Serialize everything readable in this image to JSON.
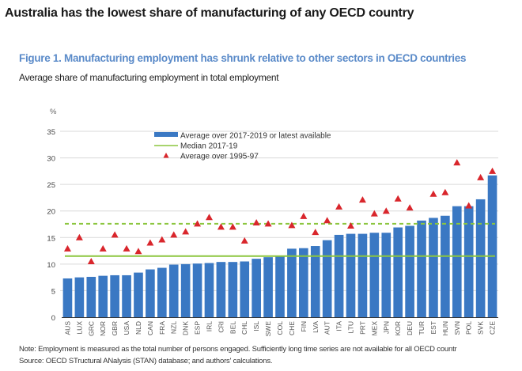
{
  "headline": "Australia has the lowest share of manufacturing of any OECD country",
  "figure_title": "Figure 1. Manufacturing employment has shrunk relative to other sectors in OECD countries",
  "figure_subtitle": "Average share of manufacturing employment in total employment",
  "note": "Note: Employment is measured as the total number of persons engaged. Sufficiently long time series are not available for all OECD countr",
  "source": "Source: OECD STructural ANalysis (STAN) database; and authors' calculations.",
  "chart_data": {
    "type": "bar",
    "title": "Figure 1. Manufacturing employment has shrunk relative to other sectors in OECD countries",
    "subtitle": "Average share of manufacturing employment in total employment",
    "xlabel": "",
    "ylabel": "%",
    "ylim": [
      0,
      35
    ],
    "yticks": [
      0,
      5,
      10,
      15,
      20,
      25,
      30,
      35
    ],
    "grid": true,
    "legend_position": "top-center",
    "categories": [
      "AUS",
      "LUX",
      "GRC",
      "NOR",
      "GBR",
      "USA",
      "NLD",
      "CAN",
      "FRA",
      "NZL",
      "DNK",
      "ESP",
      "IRL",
      "CRI",
      "BEL",
      "CHL",
      "ISL",
      "SWE",
      "COL",
      "CHE",
      "FIN",
      "LVA",
      "AUT",
      "ITA",
      "LTU",
      "PRT",
      "MEX",
      "JPN",
      "KOR",
      "DEU",
      "TUR",
      "EST",
      "HUN",
      "SVN",
      "POL",
      "SVK",
      "CZE"
    ],
    "series": [
      {
        "name": "Average over 2017-2019 or latest available",
        "kind": "bar",
        "color": "#3a78c3",
        "values": [
          7.3,
          7.5,
          7.6,
          7.8,
          7.9,
          7.9,
          8.4,
          9.0,
          9.3,
          9.9,
          10.0,
          10.1,
          10.2,
          10.4,
          10.4,
          10.5,
          11.0,
          11.3,
          11.5,
          12.9,
          13.0,
          13.4,
          14.5,
          15.5,
          15.7,
          15.7,
          15.9,
          15.9,
          16.9,
          17.2,
          18.2,
          18.7,
          19.1,
          20.9,
          20.9,
          22.2,
          26.7
        ]
      },
      {
        "name": "Average over 1995-97",
        "kind": "marker-triangle",
        "color": "#d9262c",
        "values": [
          12.9,
          15.0,
          10.5,
          12.9,
          15.5,
          12.9,
          12.4,
          14.0,
          14.6,
          15.5,
          16.1,
          17.6,
          18.8,
          17.0,
          17.0,
          14.4,
          17.8,
          17.6,
          null,
          17.3,
          19.0,
          16.0,
          18.2,
          20.8,
          17.2,
          22.1,
          19.5,
          20.0,
          22.3,
          20.6,
          null,
          23.2,
          23.5,
          29.1,
          21.0,
          26.3,
          27.5
        ]
      }
    ],
    "reference_lines": [
      {
        "name": "Median 2017-19",
        "value": 11.5,
        "color": "#8cc63f",
        "style": "solid"
      },
      {
        "name": "Median 1995-97",
        "value": 17.6,
        "color": "#8cc63f",
        "style": "dashed",
        "in_legend": false
      }
    ],
    "legend": [
      {
        "label": "Average over 2017-2019 or latest available",
        "symbol": "bar"
      },
      {
        "label": "Median 2017-19",
        "symbol": "line"
      },
      {
        "label": "Average over 1995-97",
        "symbol": "triangle"
      }
    ]
  }
}
